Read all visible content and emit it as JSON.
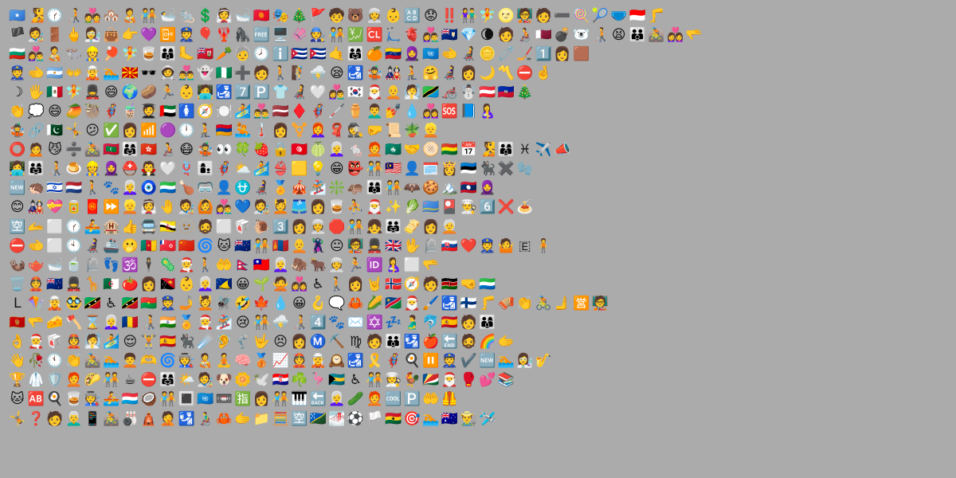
{
  "rows": [
    "🇸🇴 🧏 🕜 🧑‍🦯 💑 🏘️ 🧑‍🍼 🧑‍🤝‍🧑 🛀 🐀 💲 👰 🛁 🇰🇬 🎭 🎄 🚩 🧒 🐻 👳 👶 🔠 😟 ‼️ 👫 🧚 🌝 🧑‍🏫 🧑 ➖ 🍭 🎾 🩲 🇮🇩 🦵",
    "🏴 🧑‍🎨 🚪 🖕 👩‍🔬 👜 👉 💜 📴 👮 🎈 🦞 🦍 🆓 🖥️ 🦑 🧑‍🔧 🧑‍🤝‍🧑 💹 🆑 🛴 🫀 👩‍❤️‍👨 🇦🇮 💎 🌘 🧑 🧑‍🦽 🇶🇦 💣 🐻‍❄️ 🧑‍🦯 😫 👪 🚵 👩‍❤️‍👩 🫳",
    "🇧🇬 👩‍❤️‍👨 🧑‍🍼 🐃 👷 🏓 🧚 🥃 👨‍👩‍👦 🦶 🇧🇲 🥕 🧓 🕗 ℹ️ 🇨🇺 🇨🇺 🤙 👨‍👩‍👧 🍊 🇻🇪 🧕 🇺🇳 🫲 🧑‍🦼 🪙 🧷 🏒 1️⃣ 👩 🟫",
    "👮 🫲 🇦🇷 👐 🧝 🏊 🇲🇰 🕶️ 🧑‍🚀 👨‍❤️‍👨 👻 🇳🇬 ➕ 🧑 🚶 🧗 ⛈️ 😪 🛃 🤹 🎎 🧎 🤗 👩‍🦼 👩 🌙 〽️ ⛔ 🤞",
    "☽ 🖐️ 🇲🇽 🧚 💂 😄 🌍 🥔 🏃 👶 🧑‍💻 🛃 7️⃣ 🅿️ 👕 🧑‍🦼 🤍 👩‍❤️‍👨 🇰🇷 🎅 🧑‍🦲 🧖 🇹🇿 🦽 ☃️ 🇦🇹 🇭🇹 🎄",
    "👏 💭 😄 🥭 🦥 🦸 🧋 🧑‍🎓 🇦🇪 🚺 🧭 🍽️ 🏄 👨‍❤️‍👨 🇱🇻 ♦️ 🦸 🦯 ⚱️ 👨‍🦱 💅 💧 👩‍❤️‍👩 🆘 📘 🤱",
    "🤹 🔗 🇵🇰 🤸 😕 ✅ 👩 📶 🟣 🕛 🧎 🇦🇲 🤽 🌡️ 👩 ⚧️ 👩‍🦰 🧣 🕵️ 🤛 📜 🪴 👱",
    "⭕ 🙍 😼 ➗ 🚵 🇲🇻 👨‍👩‍👧 🇭🇰 🧑‍🦽 😷 🤹 👀 🍀 🍓 🔒 🇹🇳 🍈 👩‍🦳 🐁 🧑‍🦰 🇲🇴 🤝 🫓 🇧🇴 📅 🧏 👨‍👩‍👦 ♓ ✈️ 📣",
    "👩‍💻 👨‍👩‍👧 🧑‍🦯 🍮 👷 🧕 ⛑️ 🧛 🤍 🪢 👩‍👦 🦸 ⛅ 🏄 👙 🟨 💡 😁 👺 🧑‍🤝‍🧑 🇲🇾 👤 🗓️ 👸 🇪🇪 🐈‍⬛ ✖️ 🧤",
    "🆕 🦔 🇮🇱 🇳🇱 🚶 🐾 👩‍🦳 🧿 🇸🇱 🍗 🥽 👤 ⛎ 👩‍🦼 🏅 🎪 🏂 ❇️ 🦛 👨‍👩‍👦 🧑‍🤝‍🧑 🦇 🍪 🏔️ 🇱🇦 🧕",
    "😊 🎎 💝 🥫 🧧 ⏩ 👱 👰 🤚 🧑‍🎨 🙆 👩‍❤️‍👨 💙 🧑‍🎨 💆 🩳 👩 🥃 ⛹️ 🎅 ✨ 🥬 🇦🇼 🎴 👨‍🍳 6️⃣ ❌ 🍝",
    "🈳 🫴 ⬜ 🕜 🚣 🏨 👍 🚍 🇧🇳 🫥 🧔 ⬜ 🥡 🐌 3️⃣ 👩 👳 🛑 🧑‍🤝‍🧑 👧 👨‍👨‍👧 🫔 👩 🧑‍🦳",
    "⛔ 🫲 ⬜ 🕙 👩‍🦼 🚢 🫢 🇨🇲 🇼🇫 🇨🇳 🌀 🐱 🇳🇿 🧑‍🤝‍🧑 🇲🇳 🧑‍🦲 🦹 😐 🧑‍🏫 💂 🇬🇧 🖖 🪦 🇸🇰 ❤️ 👮 🤷 🇪 🧍",
    "🦦 🫖 🛁 🍵 🪦 👣 🕉️ 🕴️ 🦠 🧑‍🎄 🚶 🤲 🇳🇵 🇹🇼 👩‍🦳 🦣 🐂 👳 🏃 🆔 🤱 ⬜ 🫳",
    "🗑️ 👲 🇳🇿 💂 🦒 🇩🇿 🍅 👩 🇵🇬 👶 👩‍🦳 🇹🇰 😀 🌱 🙅 👩‍❤️‍👩 ♿ 🚶 👩 🤘 🇳🇴 🧭 🧑 🇰🇪 🤜 🇸🇱",
    "L 🪁 🧝 🥸 🇰🇳 ♿ 🇰🇳 🇧🇫 👮 🤳 💆 🪰 🤣 🍁 💧 😀 🪝 🗨️ 🦀 🌽 🇳🇦 🎅 🖌️ 🛃 🇫🇮 🦵 🪗 👏 🚴 🫸 🈺 🧑‍🏫",
    "🇲🇪 🫳 🧀 🪓 ⌛ 👩‍🦳 🇷🇴 🧑‍🦯 🇮🇳 🏅 🧑‍🎄 🏂 😢 🧑‍🤝‍🧑 ⛈️ 🧑‍🦯 4️⃣ 🐾 ✉️ ✡️ 💤 🫃 🐬 🇪🇸 🧑 👨‍👩‍👦",
    "👌 🧑‍🎄 🥡 👲 🧖 🏄 😌 🏋️ 🇪🇸 🐈‍⬛ ☄️ 🦻 🦿 🤟 😣 👩 Ⓜ️ ⛏️ ♍ 🧑 👪 🛂 🍎 🔚 🧔 🌈 🫱",
    "👋 🥀 🕚 👏 🚵 🏊 🧑‍🦱 🫶 🌀 🧑‍🏭 🧑‍🍼 🧘 🧠 🥉 📈 👲 🧝 🕰️ 🛃 🎗️ 🦸 🍳 ⏸️ 👮 ✔️ 🆕 🏊 👩‍🔬 🎷",
    "🏆 🥼 🛡️ 🧑‍🦰 🌮 🧑‍🤝‍🧑 ☕ ⛔ 👨‍👩‍👧 🌤️ 🧑‍🎨 🐶 🌼 🕊️ 🇭🇷 ☘️ 🦩 🇧🇸 ♿ 🧑‍🤝‍🧑 🧑‍🍳 🐓 🇸🇨 🎅 🥊 💕 📚",
    "🐱 🆎 🍳 🥃 🧑‍🏭 🚣 🇱🇺 🥥 🧑‍🤝‍🧑 🔳 🇺🇳 📼 🈯 👩 🧑‍🤝‍🧑 🎹 🔙 👩‍🦳 🥒 🧑‍🦰 🆒 🅿️ 🤲 🦺",
    "🤸 ❓ 🧑 👨‍🦳 📱 🚵 🎳 🛕 🤦 🛂 👨‍🦽 🦀 🫱 📁 🧮 🈳 🇸🇧 🌁 ⚽ 🏳️ 🇬🇭 🎯 🏊 🇦🇺 👨‍🌾 🛩️"
  ]
}
